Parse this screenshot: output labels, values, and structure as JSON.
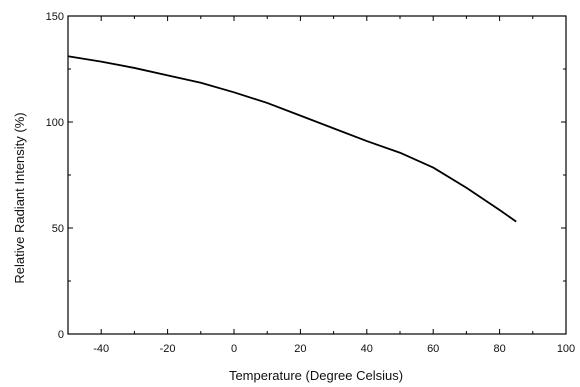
{
  "chart_data": {
    "type": "line",
    "title": "",
    "xlabel": "Temperature (Degree Celsius)",
    "ylabel": "Relative Radiant Intensity (%)",
    "xlim": [
      -50,
      100
    ],
    "ylim": [
      0,
      150
    ],
    "xticks": [
      -40,
      -20,
      0,
      20,
      40,
      60,
      80,
      100
    ],
    "yticks": [
      0,
      50,
      100,
      150
    ],
    "grid": false,
    "legend": "none",
    "line_color": "#000000",
    "series": [
      {
        "x": [
          -50,
          -40,
          -30,
          -20,
          -10,
          0,
          10,
          20,
          30,
          40,
          50,
          60,
          70,
          80,
          85
        ],
        "y": [
          131,
          128.5,
          125.5,
          122,
          118.5,
          114,
          109,
          103,
          97,
          91,
          85.5,
          78.5,
          69,
          58.5,
          53
        ]
      }
    ]
  }
}
